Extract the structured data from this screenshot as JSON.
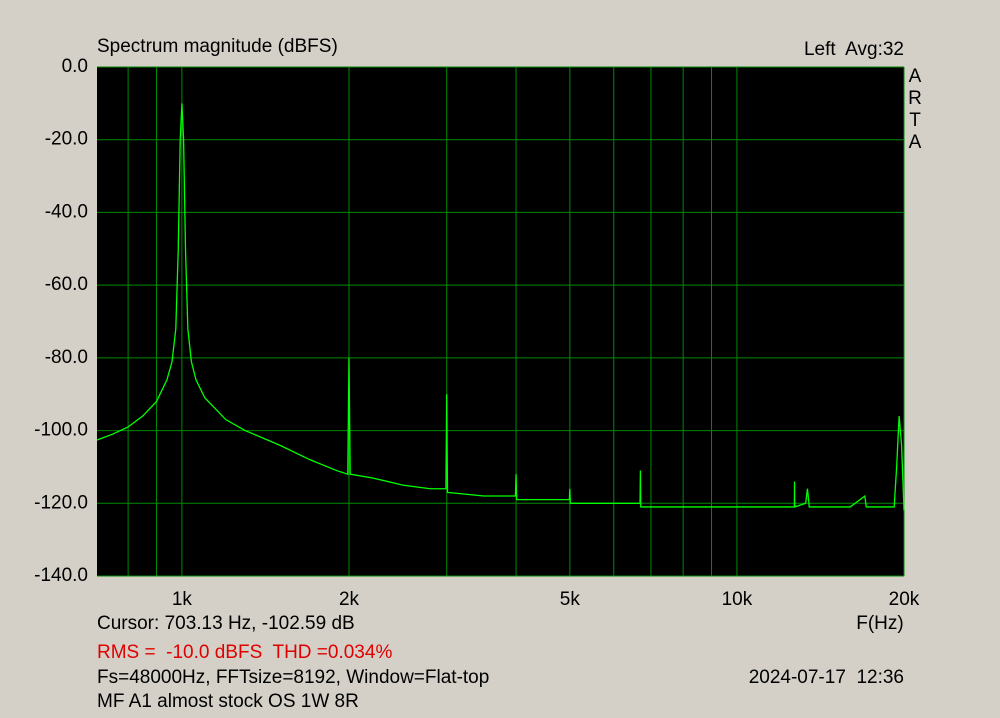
{
  "chart_data": {
    "type": "line",
    "title": "Spectrum magnitude (dBFS)",
    "channel_info": "Left  Avg:32",
    "watermark": "ARTA",
    "xlabel": "F(Hz)",
    "cursor": "Cursor: 703.13 Hz, -102.59 dB",
    "rms_thd": "RMS =  -10.0 dBFS  THD =0.034%",
    "settings": "Fs=48000Hz, FFTsize=8192, Window=Flat-top",
    "timestamp": "2024-07-17  12:36",
    "description": "MF A1 almost stock OS 1W 8R",
    "log_x": true,
    "grid": true,
    "color": "#00ff00",
    "grid_color": "#008a00",
    "xlim": [
      703.13,
      20000
    ],
    "ylim": [
      -140,
      0
    ],
    "xticks": [
      {
        "value": 1000,
        "label": "1k"
      },
      {
        "value": 2000,
        "label": "2k"
      },
      {
        "value": 5000,
        "label": "5k"
      },
      {
        "value": 10000,
        "label": "10k"
      },
      {
        "value": 20000,
        "label": "20k"
      }
    ],
    "x_minor_ticks": [
      800,
      900,
      3000,
      4000,
      6000,
      7000,
      8000,
      9000
    ],
    "yticks": [
      {
        "value": 0,
        "label": "0.0"
      },
      {
        "value": -20,
        "label": "-20.0"
      },
      {
        "value": -40,
        "label": "-40.0"
      },
      {
        "value": -60,
        "label": "-60.0"
      },
      {
        "value": -80,
        "label": "-80.0"
      },
      {
        "value": -100,
        "label": "-100.0"
      },
      {
        "value": -120,
        "label": "-120.0"
      },
      {
        "value": -140,
        "label": "-140.0"
      }
    ],
    "x": [
      703,
      750,
      800,
      850,
      900,
      940,
      960,
      975,
      985,
      993,
      1000,
      1007,
      1015,
      1025,
      1040,
      1060,
      1100,
      1200,
      1300,
      1500,
      1700,
      1900,
      1990,
      2000,
      2010,
      2200,
      2500,
      2800,
      2990,
      3000,
      3010,
      3500,
      3990,
      4000,
      4010,
      4500,
      4990,
      5000,
      5010,
      6000,
      6690,
      6700,
      6710,
      8000,
      10000,
      12000,
      12690,
      12700,
      12710,
      13300,
      13400,
      13500,
      16000,
      17000,
      17100,
      19200,
      19400,
      19600,
      19800,
      20000
    ],
    "values": [
      -102.6,
      -101,
      -99,
      -96,
      -92,
      -86,
      -81,
      -72,
      -50,
      -20,
      -10,
      -20,
      -50,
      -72,
      -81,
      -86,
      -91,
      -97,
      -100,
      -104,
      -108,
      -111,
      -112,
      -80,
      -112,
      -113,
      -115,
      -116,
      -116,
      -90,
      -117,
      -118,
      -118,
      -112,
      -119,
      -119,
      -119,
      -116,
      -120,
      -120,
      -120,
      -111,
      -121,
      -121,
      -121,
      -121,
      -121,
      -114,
      -121,
      -120,
      -116,
      -121,
      -121,
      -118,
      -121,
      -121,
      -110,
      -96,
      -104,
      -122
    ]
  }
}
